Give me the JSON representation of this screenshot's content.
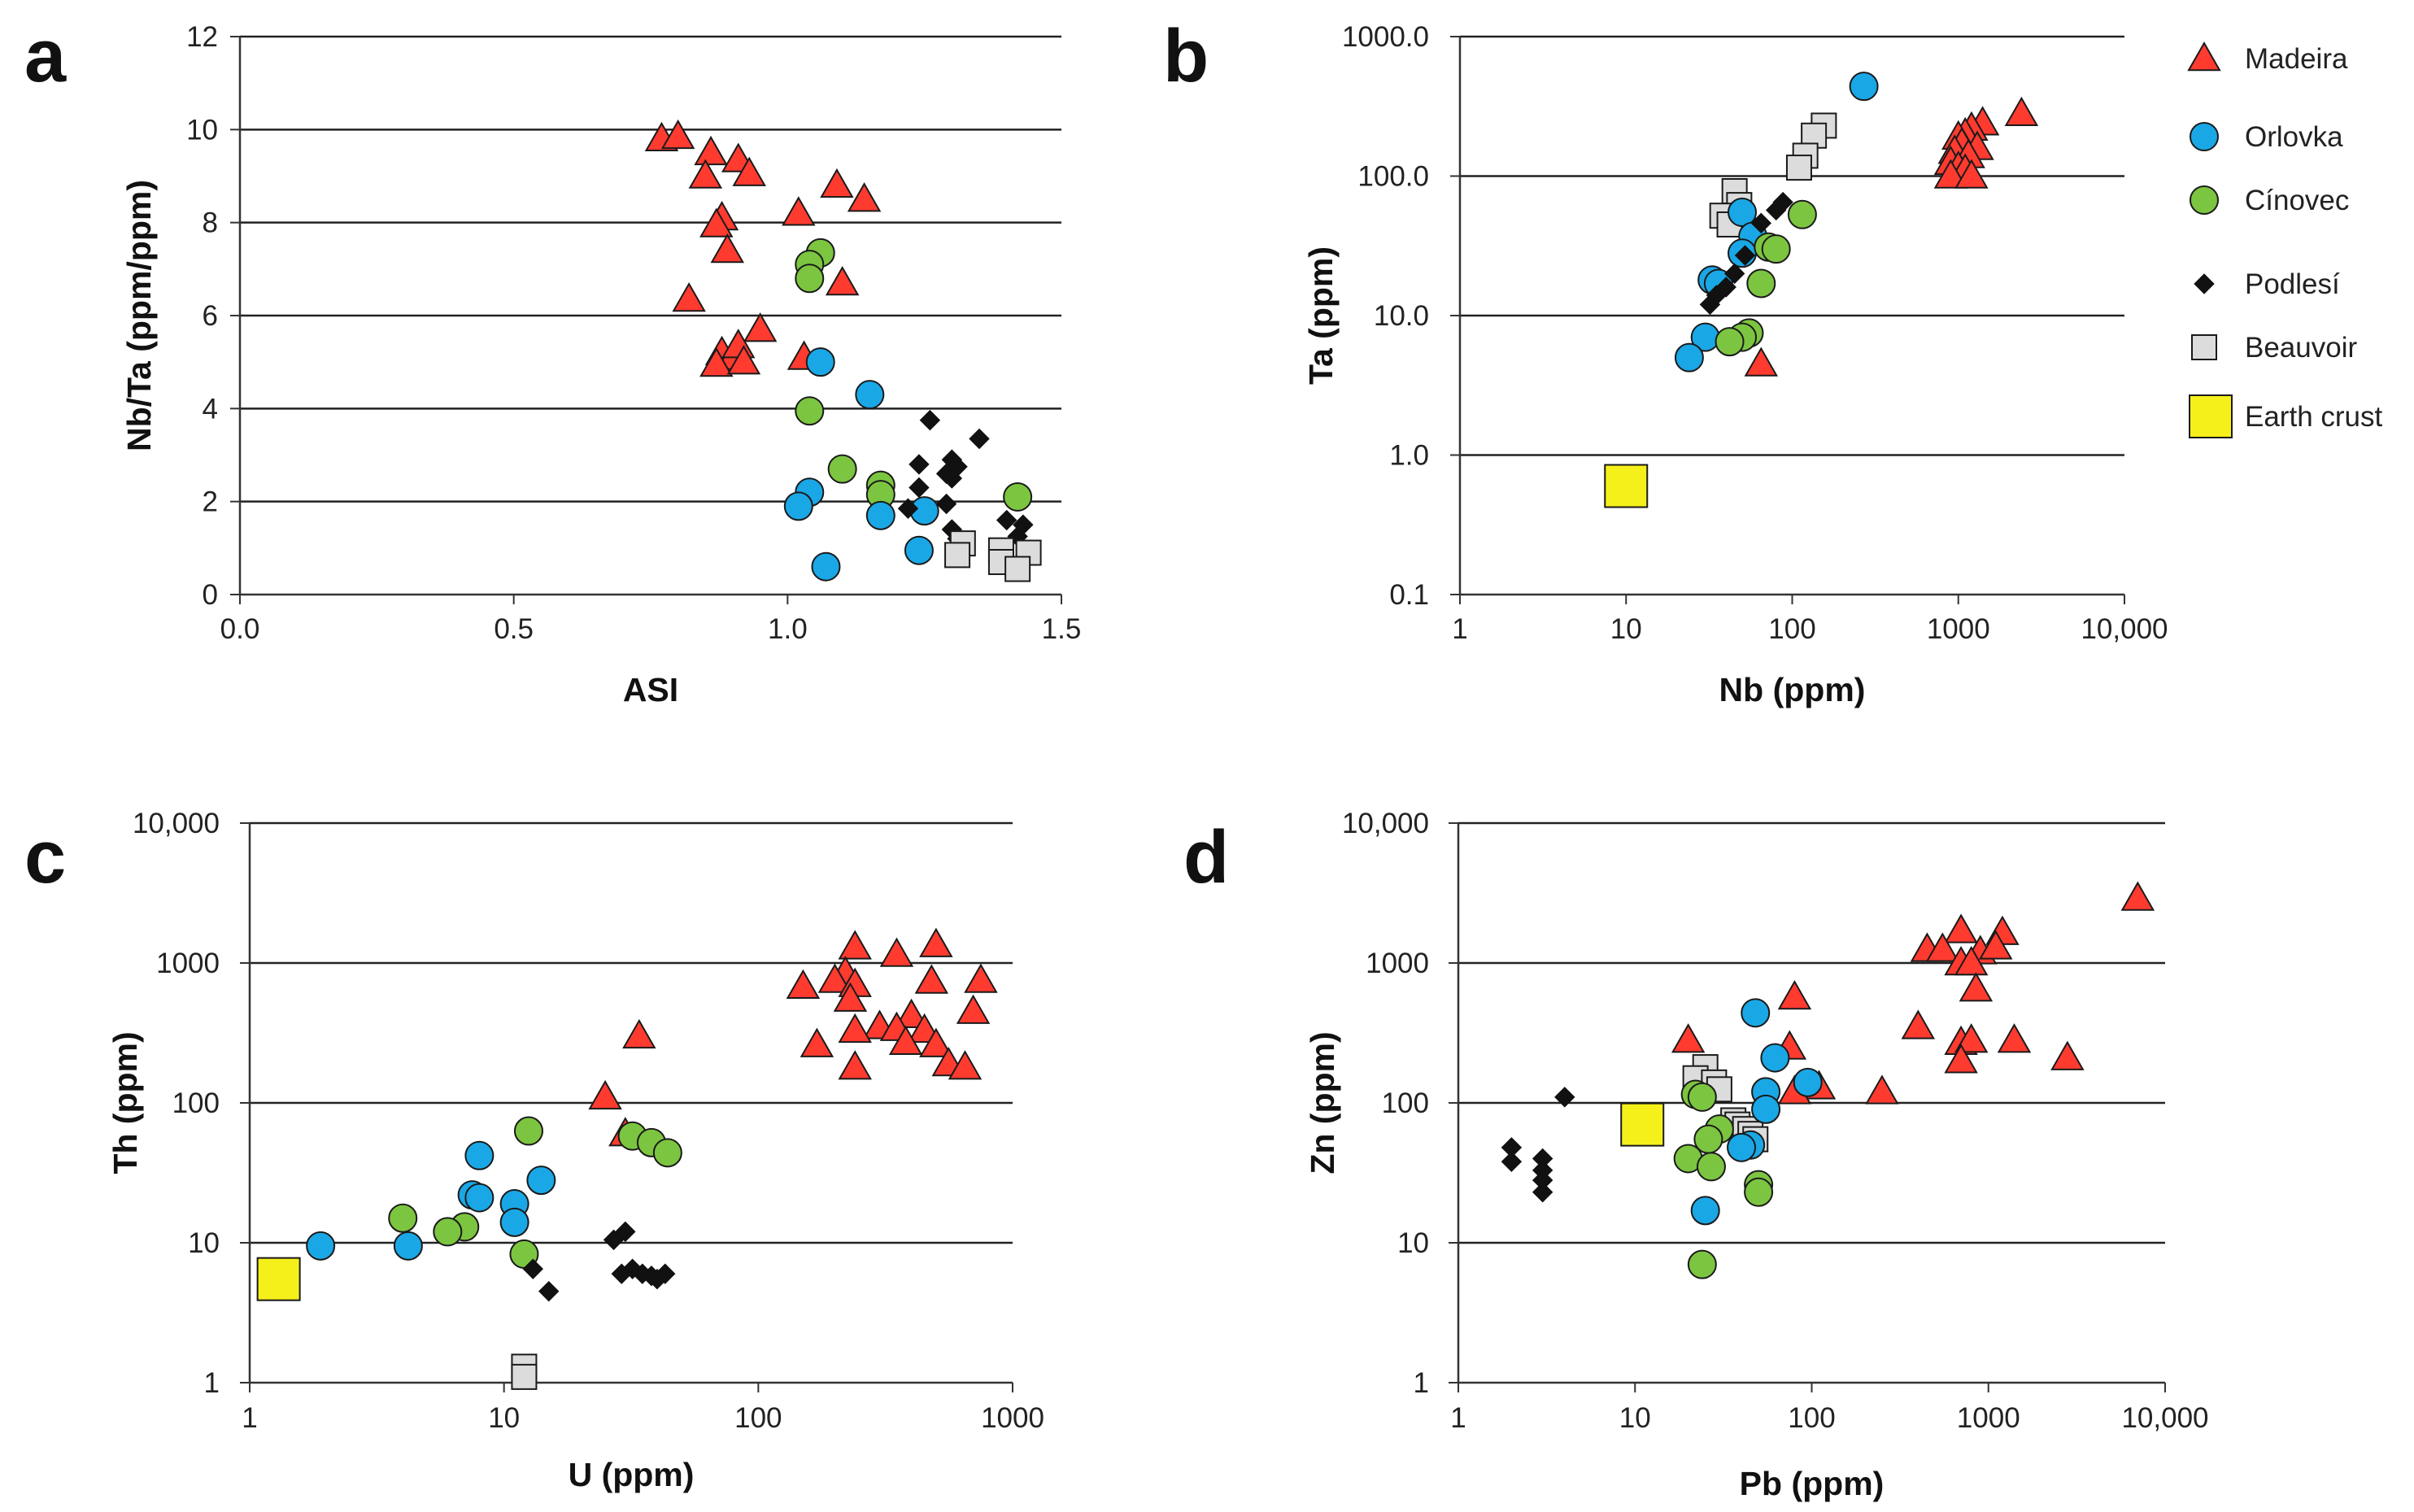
{
  "colors": {
    "Madeira": "#ff3b30",
    "Orlovka": "#1aa7e6",
    "Cinovec": "#7cc540",
    "Podlesi": "#111111",
    "Beauvoir": "#dcdcdc",
    "EarthCrust": "#f5f01a"
  },
  "legend": [
    {
      "key": "Madeira",
      "label": "Madeira",
      "marker": "triangle"
    },
    {
      "key": "Orlovka",
      "label": "Orlovka",
      "marker": "circle"
    },
    {
      "key": "Cinovec",
      "label": "Cínovec",
      "marker": "circle"
    },
    {
      "key": "Podlesi",
      "label": "Podlesí",
      "marker": "diamond"
    },
    {
      "key": "Beauvoir",
      "label": "Beauvoir",
      "marker": "square"
    },
    {
      "key": "EarthCrust",
      "label": "Earth crust",
      "marker": "bigsquare"
    }
  ],
  "chart_data": [
    {
      "panel": "a",
      "type": "scatter",
      "xlabel": "ASI",
      "ylabel": "Nb/Ta  (ppm/ppm)",
      "xscale": "linear",
      "yscale": "linear",
      "xlim": [
        0,
        1.5
      ],
      "ylim": [
        0,
        12
      ],
      "xticks": [
        0,
        0.5,
        1,
        1.5
      ],
      "xticklabels": [
        "0.0",
        "0.5",
        "1.0",
        "1.5"
      ],
      "yticks": [
        0,
        2,
        4,
        6,
        8,
        10,
        12
      ],
      "yticklabels": [
        "0",
        "2",
        "4",
        "6",
        "8",
        "10",
        "12"
      ],
      "grid": "horizontal",
      "series": [
        {
          "key": "Madeira",
          "points": [
            [
              0.77,
              9.8
            ],
            [
              0.8,
              9.85
            ],
            [
              0.86,
              9.5
            ],
            [
              0.91,
              9.35
            ],
            [
              0.93,
              9.05
            ],
            [
              0.85,
              9.0
            ],
            [
              0.88,
              8.1
            ],
            [
              0.87,
              7.95
            ],
            [
              0.89,
              7.4
            ],
            [
              1.09,
              8.8
            ],
            [
              1.14,
              8.5
            ],
            [
              1.02,
              8.2
            ],
            [
              1.1,
              6.7
            ],
            [
              0.82,
              6.35
            ],
            [
              0.95,
              5.7
            ],
            [
              0.88,
              5.2
            ],
            [
              0.9,
              5.1
            ],
            [
              0.91,
              5.35
            ],
            [
              0.87,
              4.95
            ],
            [
              0.92,
              5.0
            ],
            [
              1.03,
              5.1
            ]
          ]
        },
        {
          "key": "Cinovec",
          "points": [
            [
              1.06,
              7.35
            ],
            [
              1.04,
              7.1
            ],
            [
              1.04,
              6.8
            ],
            [
              1.04,
              3.95
            ],
            [
              1.1,
              2.7
            ],
            [
              1.17,
              2.35
            ],
            [
              1.17,
              2.15
            ],
            [
              1.42,
              2.1
            ]
          ]
        },
        {
          "key": "Orlovka",
          "points": [
            [
              1.06,
              5.0
            ],
            [
              1.15,
              4.3
            ],
            [
              1.04,
              2.2
            ],
            [
              1.02,
              1.9
            ],
            [
              1.17,
              1.7
            ],
            [
              1.25,
              1.8
            ],
            [
              1.24,
              0.95
            ],
            [
              1.07,
              0.6
            ]
          ]
        },
        {
          "key": "Podlesi",
          "points": [
            [
              1.26,
              3.75
            ],
            [
              1.35,
              3.35
            ],
            [
              1.3,
              2.9
            ],
            [
              1.24,
              2.8
            ],
            [
              1.31,
              2.75
            ],
            [
              1.29,
              2.6
            ],
            [
              1.3,
              2.5
            ],
            [
              1.24,
              2.3
            ],
            [
              1.29,
              1.95
            ],
            [
              1.22,
              1.85
            ],
            [
              1.3,
              1.4
            ],
            [
              1.4,
              1.6
            ],
            [
              1.43,
              1.5
            ],
            [
              1.42,
              1.25
            ],
            [
              1.31,
              1.2
            ]
          ]
        },
        {
          "key": "Beauvoir",
          "points": [
            [
              1.32,
              1.1
            ],
            [
              1.31,
              0.85
            ],
            [
              1.39,
              0.95
            ],
            [
              1.44,
              0.9
            ],
            [
              1.39,
              0.7
            ],
            [
              1.42,
              0.55
            ]
          ]
        }
      ]
    },
    {
      "panel": "b",
      "type": "scatter",
      "xlabel": "Nb  (ppm)",
      "ylabel": "Ta  (ppm)",
      "xscale": "log",
      "yscale": "log",
      "xlim": [
        1,
        10000
      ],
      "ylim": [
        0.1,
        1000
      ],
      "xticks": [
        1,
        10,
        100,
        1000,
        10000
      ],
      "xticklabels": [
        "1",
        "10",
        "100",
        "1000",
        "10,000"
      ],
      "yticks": [
        0.1,
        1,
        10,
        100,
        1000
      ],
      "yticklabels": [
        "0.1",
        "1.0",
        "10.0",
        "100.0",
        "1000.0"
      ],
      "grid": "horizontal",
      "series": [
        {
          "key": "Madeira",
          "points": [
            [
              2400,
              280
            ],
            [
              1400,
              240
            ],
            [
              1200,
              220
            ],
            [
              1100,
              200
            ],
            [
              1000,
              190
            ],
            [
              1050,
              170
            ],
            [
              1300,
              160
            ],
            [
              950,
              150
            ],
            [
              1150,
              140
            ],
            [
              900,
              125
            ],
            [
              1000,
              115
            ],
            [
              1100,
              110
            ],
            [
              900,
              100
            ],
            [
              1200,
              100
            ],
            [
              65,
              4.5
            ]
          ]
        },
        {
          "key": "Beauvoir",
          "points": [
            [
              155,
              230
            ],
            [
              135,
              195
            ],
            [
              120,
              140
            ],
            [
              110,
              115
            ],
            [
              45,
              78
            ],
            [
              48,
              62
            ],
            [
              38,
              52
            ],
            [
              42,
              45
            ]
          ]
        },
        {
          "key": "Orlovka",
          "points": [
            [
              270,
              440
            ],
            [
              50,
              55
            ],
            [
              58,
              37
            ],
            [
              50,
              28
            ],
            [
              33,
              18
            ],
            [
              36,
              17
            ],
            [
              30,
              7
            ],
            [
              24,
              5
            ]
          ]
        },
        {
          "key": "Podlesi",
          "points": [
            [
              88,
              65
            ],
            [
              80,
              57
            ],
            [
              65,
              46
            ],
            [
              52,
              27
            ],
            [
              45,
              20
            ],
            [
              40,
              16
            ],
            [
              35,
              14
            ],
            [
              32,
              12
            ]
          ]
        },
        {
          "key": "Cinovec",
          "points": [
            [
              115,
              53
            ],
            [
              72,
              31
            ],
            [
              80,
              30
            ],
            [
              65,
              17
            ],
            [
              55,
              7.5
            ],
            [
              50,
              7
            ],
            [
              42,
              6.5
            ]
          ]
        },
        {
          "key": "EarthCrust",
          "points": [
            [
              10,
              0.6
            ]
          ]
        }
      ]
    },
    {
      "panel": "c",
      "type": "scatter",
      "xlabel": "U  (ppm)",
      "ylabel": "Th  (ppm)",
      "xscale": "log",
      "yscale": "log",
      "xlim": [
        1,
        1000
      ],
      "ylim": [
        1,
        10000
      ],
      "xticks": [
        1,
        10,
        100,
        1000
      ],
      "xticklabels": [
        "1",
        "10",
        "100",
        "1000"
      ],
      "yticks": [
        1,
        10,
        100,
        1000,
        10000
      ],
      "yticklabels": [
        "1",
        "10",
        "100",
        "1000",
        "10,000"
      ],
      "grid": "horizontal",
      "series": [
        {
          "key": "Madeira",
          "points": [
            [
              240,
              1300
            ],
            [
              500,
              1350
            ],
            [
              350,
              1150
            ],
            [
              220,
              850
            ],
            [
              200,
              750
            ],
            [
              240,
              700
            ],
            [
              150,
              680
            ],
            [
              480,
              740
            ],
            [
              750,
              750
            ],
            [
              700,
              450
            ],
            [
              400,
              420
            ],
            [
              300,
              350
            ],
            [
              350,
              340
            ],
            [
              450,
              330
            ],
            [
              240,
              330
            ],
            [
              230,
              550
            ],
            [
              380,
              270
            ],
            [
              170,
              260
            ],
            [
              500,
              260
            ],
            [
              560,
              190
            ],
            [
              650,
              180
            ],
            [
              240,
              180
            ],
            [
              34,
              300
            ],
            [
              25,
              110
            ],
            [
              30,
              60
            ]
          ]
        },
        {
          "key": "Cinovec",
          "points": [
            [
              12.5,
              63
            ],
            [
              32,
              58
            ],
            [
              38,
              52
            ],
            [
              44,
              44
            ],
            [
              4,
              15
            ],
            [
              7,
              13
            ],
            [
              6,
              12
            ],
            [
              12,
              8.3
            ]
          ]
        },
        {
          "key": "Orlovka",
          "points": [
            [
              8,
              42
            ],
            [
              14,
              28
            ],
            [
              7.5,
              22
            ],
            [
              8,
              21
            ],
            [
              11,
              19
            ],
            [
              11,
              14
            ],
            [
              1.9,
              9.5
            ],
            [
              4.2,
              9.5
            ]
          ]
        },
        {
          "key": "Podlesi",
          "points": [
            [
              30,
              12
            ],
            [
              27,
              10.5
            ],
            [
              32,
              6.5
            ],
            [
              29,
              6
            ],
            [
              35,
              6
            ],
            [
              38,
              5.8
            ],
            [
              40,
              5.5
            ],
            [
              43,
              6
            ],
            [
              13,
              6.5
            ],
            [
              15,
              4.5
            ]
          ]
        },
        {
          "key": "Beauvoir",
          "points": [
            [
              12,
              1.3
            ],
            [
              12,
              1.1
            ]
          ]
        },
        {
          "key": "EarthCrust",
          "points": [
            [
              1.3,
              5.5
            ]
          ]
        }
      ]
    },
    {
      "panel": "d",
      "type": "scatter",
      "xlabel": "Pb (ppm)",
      "ylabel": "Zn  (ppm)",
      "xscale": "log",
      "yscale": "log",
      "xlim": [
        1,
        10000
      ],
      "ylim": [
        1,
        10000
      ],
      "xticks": [
        1,
        10,
        100,
        1000,
        10000
      ],
      "xticklabels": [
        "1",
        "10",
        "100",
        "1000",
        "10,000"
      ],
      "yticks": [
        1,
        10,
        100,
        1000,
        10000
      ],
      "yticklabels": [
        "1",
        "10",
        "100",
        "1000",
        "10,000"
      ],
      "grid": "horizontal",
      "series": [
        {
          "key": "Madeira",
          "points": [
            [
              7000,
              2900
            ],
            [
              700,
              1700
            ],
            [
              1200,
              1650
            ],
            [
              450,
              1250
            ],
            [
              550,
              1250
            ],
            [
              900,
              1200
            ],
            [
              1100,
              1300
            ],
            [
              700,
              1000
            ],
            [
              800,
              1000
            ],
            [
              850,
              650
            ],
            [
              400,
              350
            ],
            [
              1400,
              280
            ],
            [
              2800,
              210
            ],
            [
              700,
              270
            ],
            [
              800,
              280
            ],
            [
              700,
              200
            ],
            [
              250,
              120
            ],
            [
              80,
              570
            ],
            [
              20,
              280
            ],
            [
              75,
              250
            ],
            [
              110,
              130
            ],
            [
              80,
              120
            ]
          ]
        },
        {
          "key": "Beauvoir",
          "points": [
            [
              25,
              180
            ],
            [
              22,
              150
            ],
            [
              28,
              140
            ],
            [
              30,
              125
            ],
            [
              36,
              75
            ],
            [
              38,
              70
            ],
            [
              42,
              65
            ],
            [
              45,
              60
            ],
            [
              48,
              55
            ]
          ]
        },
        {
          "key": "Orlovka",
          "points": [
            [
              48,
              440
            ],
            [
              62,
              210
            ],
            [
              95,
              140
            ],
            [
              55,
              120
            ],
            [
              55,
              90
            ],
            [
              45,
              50
            ],
            [
              40,
              48
            ],
            [
              25,
              17
            ]
          ]
        },
        {
          "key": "Cinovec",
          "points": [
            [
              22,
              115
            ],
            [
              24,
              110
            ],
            [
              30,
              65
            ],
            [
              26,
              55
            ],
            [
              20,
              40
            ],
            [
              27,
              35
            ],
            [
              50,
              26
            ],
            [
              50,
              23
            ],
            [
              24,
              7
            ]
          ]
        },
        {
          "key": "Podlesi",
          "points": [
            [
              4,
              110
            ],
            [
              2,
              48
            ],
            [
              2,
              38
            ],
            [
              3,
              40
            ],
            [
              3,
              33
            ],
            [
              3,
              28
            ],
            [
              3,
              23
            ]
          ]
        },
        {
          "key": "EarthCrust",
          "points": [
            [
              11,
              70
            ]
          ]
        }
      ]
    }
  ],
  "panel_letters": {
    "a": "a",
    "b": "b",
    "c": "c",
    "d": "d"
  }
}
